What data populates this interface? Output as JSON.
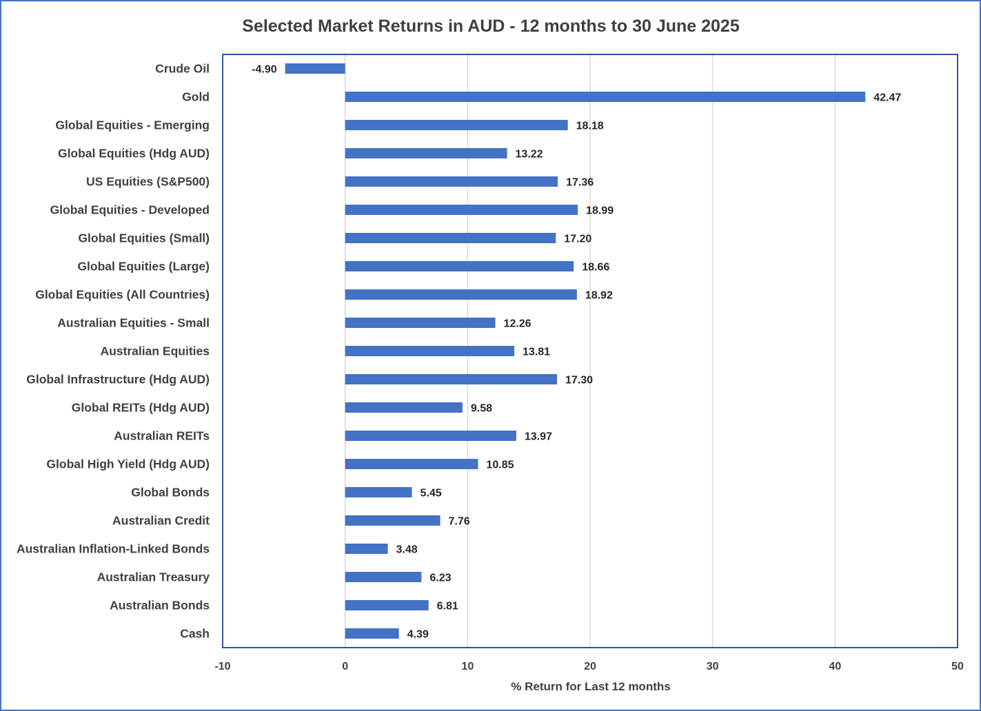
{
  "chart_data": {
    "type": "bar",
    "orientation": "horizontal",
    "title": "Selected Market Returns in AUD - 12 months to 30 June 2025",
    "xlabel": "% Return for Last 12 months",
    "ylabel": "",
    "xlim": [
      -10,
      50
    ],
    "xticks": [
      -10,
      0,
      10,
      20,
      30,
      40,
      50
    ],
    "grid": "vertical",
    "bar_color": "#4472C4",
    "categories": [
      "Crude Oil",
      "Gold",
      "Global Equities - Emerging",
      "Global Equities (Hdg AUD)",
      "US Equities (S&P500)",
      "Global Equities - Developed",
      "Global Equities (Small)",
      "Global Equities (Large)",
      "Global Equities (All Countries)",
      "Australian Equities - Small",
      "Australian Equities",
      "Global Infrastructure (Hdg AUD)",
      "Global REITs (Hdg AUD)",
      "Australian REITs",
      "Global High Yield (Hdg AUD)",
      "Global Bonds",
      "Australian Credit",
      "Australian Inflation-Linked Bonds",
      "Australian Treasury",
      "Australian Bonds",
      "Cash"
    ],
    "values": [
      -4.9,
      42.47,
      18.18,
      13.22,
      17.36,
      18.99,
      17.2,
      18.66,
      18.92,
      12.26,
      13.81,
      17.3,
      9.58,
      13.97,
      10.85,
      5.45,
      7.76,
      3.48,
      6.23,
      6.81,
      4.39
    ],
    "value_labels": [
      "-4.90",
      "42.47",
      "18.18",
      "13.22",
      "17.36",
      "18.99",
      "17.20",
      "18.66",
      "18.92",
      "12.26",
      "13.81",
      "17.30",
      "9.58",
      "13.97",
      "10.85",
      "5.45",
      "7.76",
      "3.48",
      "6.23",
      "6.81",
      "4.39"
    ]
  }
}
